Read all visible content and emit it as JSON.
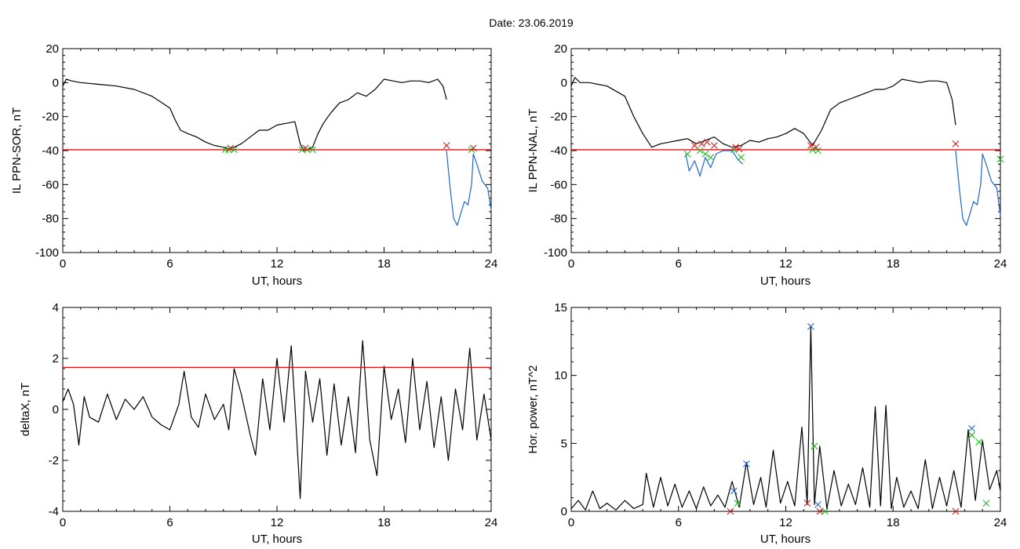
{
  "figure": {
    "title": "Date:  23.06.2019"
  },
  "chart_data": [
    {
      "id": "p1",
      "type": "line",
      "xlabel": "UT, hours",
      "ylabel": "IL PPN-SOR, nT",
      "xlim": [
        0,
        24
      ],
      "ylim": [
        -100,
        20
      ],
      "xticks": [
        0,
        6,
        12,
        18,
        24
      ],
      "yticks": [
        -100,
        -80,
        -60,
        -40,
        -20,
        0,
        20
      ],
      "threshold": -39.5,
      "series": [
        {
          "color": "#000000",
          "x": [
            0,
            0.2,
            0.5,
            1,
            2,
            3,
            4,
            5,
            6,
            6.3,
            6.6,
            7,
            7.5,
            8,
            8.5,
            9,
            9.3,
            9.6,
            10,
            10.5,
            11,
            11.5,
            12,
            12.5,
            13,
            13.3,
            13.5,
            13.8,
            14,
            14.3,
            14.6,
            15,
            15.5,
            16,
            16.5,
            17,
            17.5,
            18,
            18.5,
            19,
            19.5,
            20,
            20.5,
            21,
            21.3,
            21.5
          ],
          "y": [
            -2,
            2,
            1,
            0,
            -1,
            -2,
            -4,
            -8,
            -15,
            -22,
            -28,
            -30,
            -32,
            -35,
            -37,
            -38,
            -39,
            -38,
            -36,
            -32,
            -28,
            -28,
            -25,
            -24,
            -23,
            -36,
            -40,
            -39,
            -38,
            -30,
            -24,
            -18,
            -12,
            -10,
            -6,
            -8,
            -4,
            2,
            1,
            0,
            1,
            1,
            0,
            2,
            -2,
            -10
          ]
        },
        {
          "color": "#1f66cc",
          "x": [
            21.5,
            21.7,
            21.9,
            22.1,
            22.3,
            22.5,
            22.7,
            22.9,
            23.0,
            23.2,
            23.5,
            23.8,
            24
          ],
          "y": [
            -40,
            -62,
            -80,
            -84,
            -77,
            -70,
            -72,
            -60,
            -42,
            -48,
            -58,
            -62,
            -75
          ]
        }
      ],
      "markers": [
        {
          "color": "#1fb81f",
          "x": [
            9.1,
            9.3,
            9.6,
            13.4,
            13.7,
            14.0,
            22.9
          ],
          "y": [
            -39.5,
            -39.5,
            -39.5,
            -39.5,
            -39.5,
            -39.5,
            -39.5
          ]
        },
        {
          "color": "#cc1f1f",
          "x": [
            9.4,
            13.6,
            21.5,
            23.0
          ],
          "y": [
            -38.5,
            -38.5,
            -37,
            -38.5
          ]
        }
      ]
    },
    {
      "id": "p2",
      "type": "line",
      "xlabel": "UT, hours",
      "ylabel": "IL PPN-NAL, nT",
      "xlim": [
        0,
        24
      ],
      "ylim": [
        -100,
        20
      ],
      "xticks": [
        0,
        6,
        12,
        18,
        24
      ],
      "yticks": [
        -100,
        -80,
        -60,
        -40,
        -20,
        0,
        20
      ],
      "threshold": -39.5,
      "series": [
        {
          "color": "#000000",
          "x": [
            0,
            0.2,
            0.5,
            1,
            2,
            3,
            3.5,
            4,
            4.5,
            5,
            5.5,
            6,
            6.5,
            7,
            7.5,
            8,
            8.5,
            9,
            9.5,
            10,
            10.5,
            11,
            11.5,
            12,
            12.5,
            13,
            13.5,
            14,
            14.5,
            15,
            15.5,
            16,
            16.5,
            17,
            17.5,
            18,
            18.5,
            19,
            19.5,
            20,
            20.5,
            21,
            21.3,
            21.5
          ],
          "y": [
            -2,
            3,
            0,
            0,
            -2,
            -8,
            -20,
            -30,
            -38,
            -36,
            -35,
            -34,
            -33,
            -36,
            -34,
            -32,
            -36,
            -38,
            -37,
            -34,
            -35,
            -33,
            -32,
            -30,
            -27,
            -30,
            -37,
            -28,
            -16,
            -12,
            -10,
            -8,
            -6,
            -4,
            -4,
            -2,
            2,
            1,
            0,
            1,
            1,
            0,
            -10,
            -25
          ]
        },
        {
          "color": "#1f66cc",
          "x": [
            6.4,
            6.6,
            6.9,
            7.2,
            7.5,
            7.8,
            8.1,
            8.5,
            9.0,
            9.3,
            9.6
          ],
          "y": [
            -42,
            -52,
            -46,
            -55,
            -44,
            -50,
            -42,
            -40,
            -40,
            -45,
            -48
          ]
        },
        {
          "color": "#1f66cc",
          "x": [
            21.5,
            21.7,
            21.9,
            22.1,
            22.3,
            22.5,
            22.7,
            22.9,
            23.0,
            23.2,
            23.5,
            23.8,
            24
          ],
          "y": [
            -40,
            -62,
            -80,
            -84,
            -77,
            -70,
            -72,
            -60,
            -42,
            -48,
            -58,
            -62,
            -78
          ]
        }
      ],
      "markers": [
        {
          "color": "#1fb81f",
          "x": [
            6.5,
            7.2,
            7.5,
            7.8,
            9.1,
            9.5,
            13.5,
            13.8,
            24.0
          ],
          "y": [
            -42,
            -40,
            -42,
            -44,
            -39.5,
            -44,
            -39.5,
            -40,
            -45
          ]
        },
        {
          "color": "#cc1f1f",
          "x": [
            6.9,
            7.3,
            7.6,
            8.0,
            9.2,
            9.4,
            13.4,
            13.7,
            21.5
          ],
          "y": [
            -37,
            -36,
            -35,
            -37,
            -38,
            -39,
            -37,
            -38,
            -36
          ]
        }
      ]
    },
    {
      "id": "p3",
      "type": "line",
      "xlabel": "UT, hours",
      "ylabel": "deltaX, nT",
      "xlim": [
        0,
        24
      ],
      "ylim": [
        -4,
        4
      ],
      "xticks": [
        0,
        6,
        12,
        18,
        24
      ],
      "yticks": [
        -4,
        -2,
        0,
        2,
        4
      ],
      "threshold": 1.65,
      "series": [
        {
          "color": "#000000",
          "x": [
            0,
            0.3,
            0.6,
            0.9,
            1.2,
            1.5,
            2.0,
            2.5,
            3.0,
            3.5,
            4.0,
            4.5,
            5.0,
            5.5,
            6.0,
            6.5,
            6.8,
            7.2,
            7.6,
            8.0,
            8.5,
            9.0,
            9.3,
            9.6,
            10.0,
            10.5,
            10.8,
            11.2,
            11.6,
            12.0,
            12.4,
            12.8,
            13.0,
            13.3,
            13.6,
            14.0,
            14.4,
            14.8,
            15.2,
            15.6,
            16.0,
            16.4,
            16.8,
            17.2,
            17.6,
            18.0,
            18.4,
            18.8,
            19.2,
            19.6,
            20.0,
            20.4,
            20.8,
            21.2,
            21.6,
            22.0,
            22.4,
            22.8,
            23.2,
            23.6,
            24
          ],
          "y": [
            0.3,
            0.8,
            0.2,
            -1.4,
            0.5,
            -0.3,
            -0.5,
            0.6,
            -0.4,
            0.4,
            0,
            0.5,
            -0.3,
            -0.6,
            -0.8,
            0.2,
            1.5,
            -0.3,
            -0.7,
            0.6,
            -0.4,
            0.2,
            -0.8,
            1.6,
            0.6,
            -1.0,
            -1.8,
            1.2,
            -0.8,
            2.0,
            -0.5,
            2.5,
            0.2,
            -3.5,
            1.5,
            -0.5,
            1.2,
            -1.8,
            1.0,
            -1.4,
            0.5,
            -1.7,
            2.7,
            -1.2,
            -2.6,
            1.7,
            -0.4,
            0.8,
            -1.3,
            2.0,
            -0.8,
            1.1,
            -1.5,
            0.5,
            -2.0,
            0.8,
            -0.8,
            2.4,
            -1.2,
            0.6,
            -1.2
          ]
        }
      ],
      "markers": []
    },
    {
      "id": "p4",
      "type": "line",
      "xlabel": "UT, hours",
      "ylabel": "Hor. power, nT^2",
      "xlim": [
        0,
        24
      ],
      "ylim": [
        0,
        15
      ],
      "xticks": [
        0,
        6,
        12,
        18,
        24
      ],
      "yticks": [
        0,
        5,
        10,
        15
      ],
      "threshold": null,
      "series": [
        {
          "color": "#000000",
          "x": [
            0,
            0.4,
            0.8,
            1.2,
            1.6,
            2.0,
            2.5,
            3.0,
            3.5,
            4.0,
            4.2,
            4.6,
            5.0,
            5.4,
            5.8,
            6.2,
            6.6,
            7.0,
            7.4,
            7.8,
            8.2,
            8.6,
            9.0,
            9.4,
            9.8,
            10.2,
            10.6,
            10.9,
            11.3,
            11.7,
            12.1,
            12.5,
            12.9,
            13.2,
            13.4,
            13.6,
            13.9,
            14.3,
            14.7,
            15.1,
            15.5,
            15.9,
            16.3,
            16.7,
            17.0,
            17.3,
            17.6,
            17.9,
            18.2,
            18.6,
            19.0,
            19.4,
            19.8,
            20.2,
            20.6,
            21.0,
            21.4,
            21.8,
            22.2,
            22.6,
            23.0,
            23.4,
            23.8,
            24
          ],
          "y": [
            0.2,
            0.8,
            0.1,
            1.5,
            0.2,
            0.6,
            0.1,
            0.8,
            0.2,
            0.5,
            2.8,
            0.3,
            2.5,
            0.4,
            2.0,
            0.3,
            1.5,
            0.2,
            1.8,
            0.4,
            1.2,
            0.3,
            2.2,
            0.3,
            3.6,
            0.5,
            2.5,
            0.3,
            4.5,
            0.6,
            2.2,
            0.4,
            6.2,
            0.5,
            13.6,
            0.5,
            4.8,
            0.2,
            3.0,
            0.4,
            2.0,
            0.5,
            3.2,
            0.3,
            7.7,
            0.4,
            7.8,
            0.2,
            2.5,
            0.3,
            1.5,
            0.2,
            3.8,
            0.2,
            2.5,
            0.4,
            3.0,
            0.3,
            6.0,
            0.8,
            5.2,
            1.6,
            3.0,
            1.5
          ]
        }
      ],
      "markers": [
        {
          "color": "#1f66cc",
          "x": [
            9.1,
            9.8,
            13.4,
            13.8,
            22.4
          ],
          "y": [
            1.5,
            3.5,
            13.6,
            0.5,
            6.1
          ]
        },
        {
          "color": "#1fb81f",
          "x": [
            9.3,
            13.6,
            14.2,
            22.4,
            22.8,
            23.2
          ],
          "y": [
            0.6,
            4.8,
            0,
            5.6,
            5.1,
            0.6
          ]
        },
        {
          "color": "#cc1f1f",
          "x": [
            8.9,
            13.2,
            13.9,
            21.5
          ],
          "y": [
            0,
            0.6,
            0,
            0
          ]
        }
      ]
    }
  ]
}
